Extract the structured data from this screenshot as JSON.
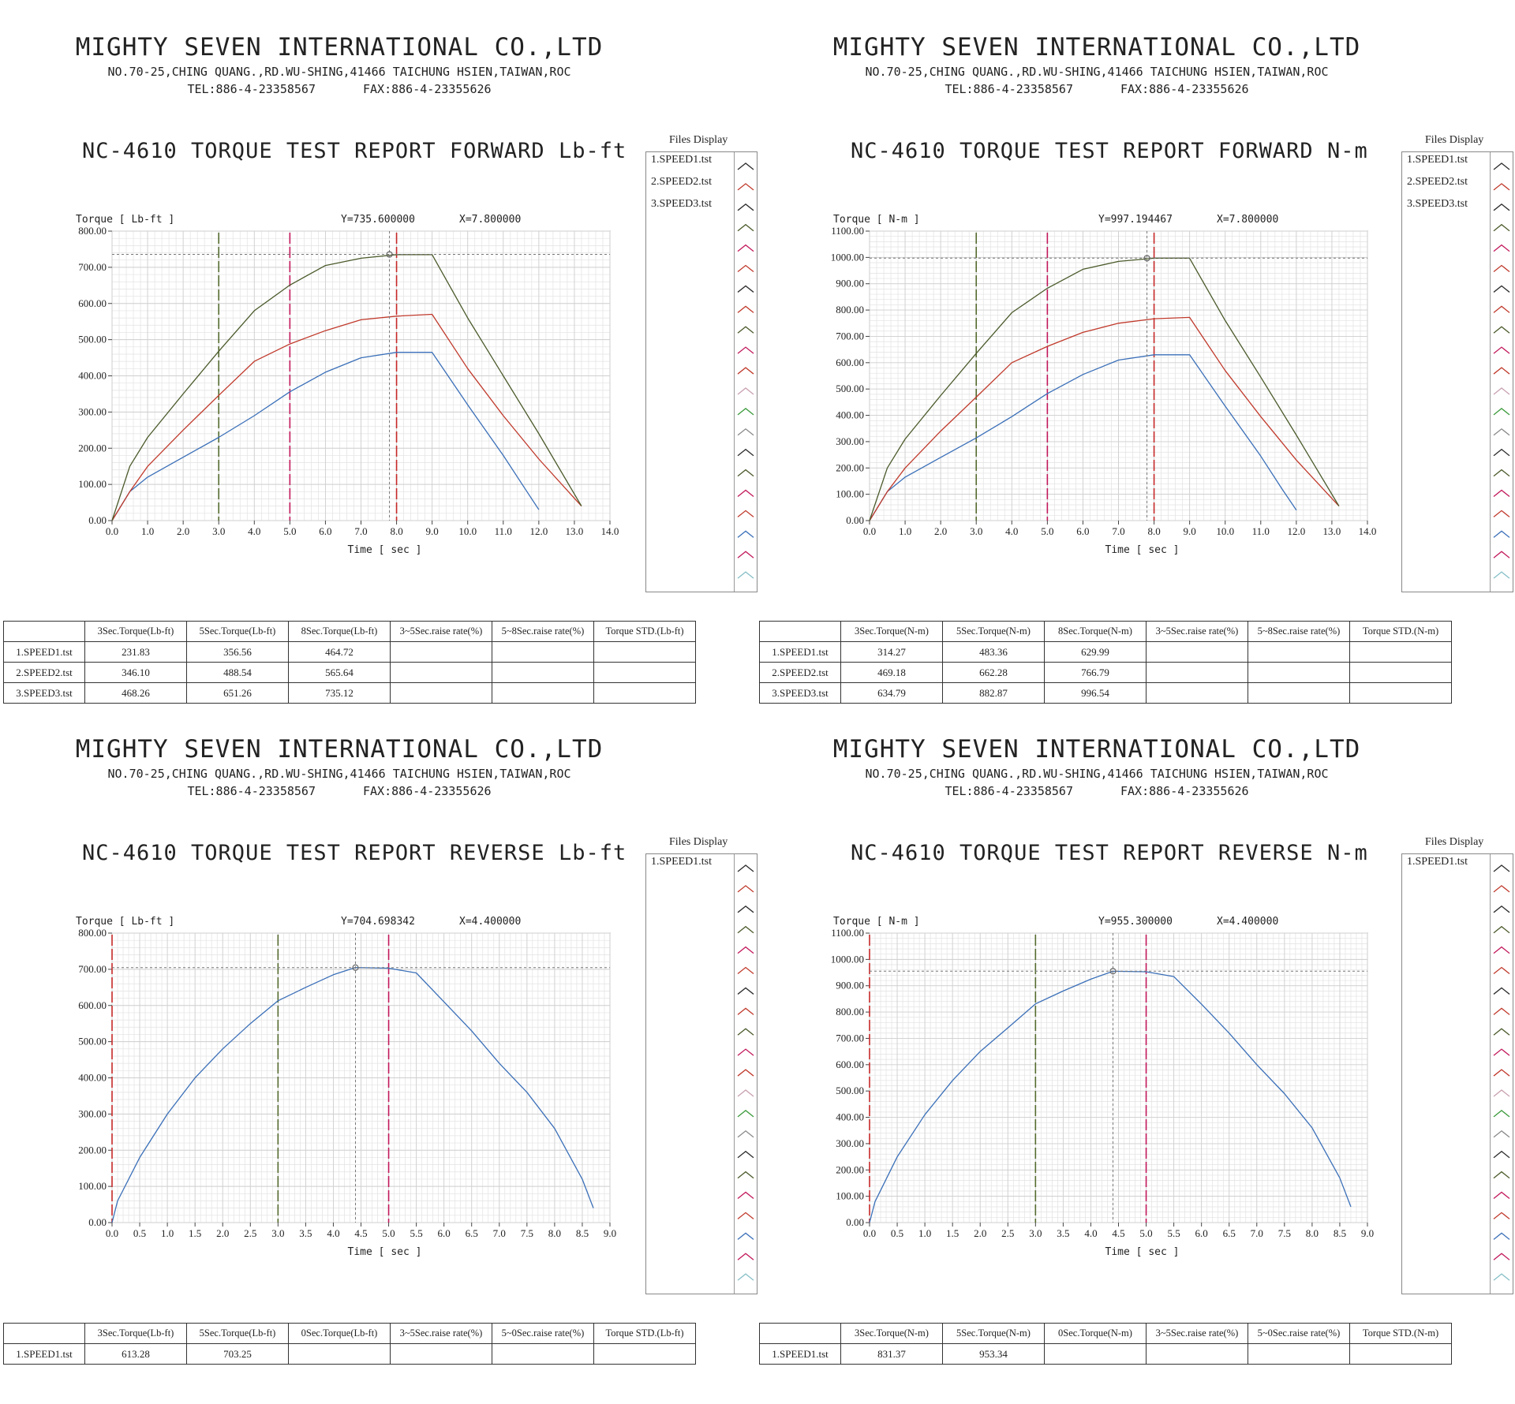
{
  "company": {
    "name": "MIGHTY SEVEN INTERNATIONAL CO.,LTD",
    "address": "NO.70-25,CHING QUANG.,RD.WU-SHING,41466 TAICHUNG HSIEN,TAIWAN,ROC",
    "tel": "TEL:886-4-23358567",
    "fax": "FAX:886-4-23355626"
  },
  "files_display_label": "Files Display",
  "reports": [
    {
      "title": "NC-4610 TORQUE TEST REPORT FORWARD Lb-ft",
      "files": [
        "1.SPEED1.tst",
        "2.SPEED2.tst",
        "3.SPEED3.tst"
      ],
      "table": {
        "headers": [
          "",
          "3Sec.Torque(Lb-ft)",
          "5Sec.Torque(Lb-ft)",
          "8Sec.Torque(Lb-ft)",
          "3~5Sec.raise rate(%)",
          "5~8Sec.raise rate(%)",
          "Torque STD.(Lb-ft)"
        ],
        "rows": [
          [
            "1.SPEED1.tst",
            "231.83",
            "356.56",
            "464.72",
            "",
            "",
            ""
          ],
          [
            "2.SPEED2.tst",
            "346.10",
            "488.54",
            "565.64",
            "",
            "",
            ""
          ],
          [
            "3.SPEED3.tst",
            "468.26",
            "651.26",
            "735.12",
            "",
            "",
            ""
          ]
        ]
      }
    },
    {
      "title": "NC-4610 TORQUE TEST REPORT FORWARD N-m",
      "files": [
        "1.SPEED1.tst",
        "2.SPEED2.tst",
        "3.SPEED3.tst"
      ],
      "table": {
        "headers": [
          "",
          "3Sec.Torque(N-m)",
          "5Sec.Torque(N-m)",
          "8Sec.Torque(N-m)",
          "3~5Sec.raise rate(%)",
          "5~8Sec.raise rate(%)",
          "Torque STD.(N-m)"
        ],
        "rows": [
          [
            "1.SPEED1.tst",
            "314.27",
            "483.36",
            "629.99",
            "",
            "",
            ""
          ],
          [
            "2.SPEED2.tst",
            "469.18",
            "662.28",
            "766.79",
            "",
            "",
            ""
          ],
          [
            "3.SPEED3.tst",
            "634.79",
            "882.87",
            "996.54",
            "",
            "",
            ""
          ]
        ]
      }
    },
    {
      "title": "NC-4610 TORQUE TEST REPORT REVERSE Lb-ft",
      "files": [
        "1.SPEED1.tst"
      ],
      "table": {
        "headers": [
          "",
          "3Sec.Torque(Lb-ft)",
          "5Sec.Torque(Lb-ft)",
          "0Sec.Torque(Lb-ft)",
          "3~5Sec.raise rate(%)",
          "5~0Sec.raise rate(%)",
          "Torque STD.(Lb-ft)"
        ],
        "rows": [
          [
            "1.SPEED1.tst",
            "613.28",
            "703.25",
            "",
            "",
            "",
            ""
          ]
        ]
      }
    },
    {
      "title": "NC-4610 TORQUE TEST REPORT REVERSE N-m",
      "files": [
        "1.SPEED1.tst"
      ],
      "table": {
        "headers": [
          "",
          "3Sec.Torque(N-m)",
          "5Sec.Torque(N-m)",
          "0Sec.Torque(N-m)",
          "3~5Sec.raise rate(%)",
          "5~0Sec.raise rate(%)",
          "Torque STD.(N-m)"
        ],
        "rows": [
          [
            "1.SPEED1.tst",
            "831.37",
            "953.34",
            "",
            "",
            "",
            ""
          ]
        ]
      }
    }
  ],
  "chart_data": [
    {
      "type": "line",
      "ylabel": "Torque [ Lb-ft ]",
      "xlabel": "Time [ sec ]",
      "cursor_y_text": "Y=735.600000",
      "cursor_x_text": "X=7.800000",
      "cursor": {
        "x": 7.8,
        "y": 735.6
      },
      "xlim": [
        0,
        14
      ],
      "ylim": [
        0,
        800
      ],
      "xticks": [
        0,
        1,
        2,
        3,
        4,
        5,
        6,
        7,
        8,
        9,
        10,
        11,
        12,
        13,
        14
      ],
      "xtick_labels": [
        "0.0",
        "1.0",
        "2.0",
        "3.0",
        "4.0",
        "5.0",
        "6.0",
        "7.0",
        "8.0",
        "9.0",
        "10.0",
        "11.0",
        "12.0",
        "13.0",
        "14.0"
      ],
      "yticks": [
        0,
        100,
        200,
        300,
        400,
        500,
        600,
        700,
        800
      ],
      "ytick_labels": [
        "0.00",
        "100.00",
        "200.00",
        "300.00",
        "400.00",
        "500.00",
        "600.00",
        "700.00",
        "800.00"
      ],
      "grid": true,
      "markers": [
        {
          "x": 3,
          "color": "#556b2f"
        },
        {
          "x": 5,
          "color": "#c2185b"
        },
        {
          "x": 8,
          "color": "#c62828"
        }
      ],
      "series": [
        {
          "color": "#3a6fb8",
          "x": [
            0,
            0.5,
            1,
            2,
            3,
            4,
            5,
            6,
            7,
            8,
            9,
            10,
            11,
            11.6,
            12
          ],
          "y": [
            0,
            80,
            120,
            175,
            230,
            290,
            356,
            410,
            450,
            465,
            465,
            320,
            180,
            90,
            30
          ]
        },
        {
          "color": "#c0392b",
          "x": [
            0,
            0.5,
            1,
            2,
            3,
            4,
            5,
            6,
            7,
            8,
            9,
            10,
            11,
            12,
            13.2
          ],
          "y": [
            0,
            80,
            150,
            250,
            346,
            440,
            488,
            525,
            555,
            565,
            570,
            420,
            290,
            170,
            40
          ]
        },
        {
          "color": "#4a5a2a",
          "x": [
            0,
            0.5,
            1,
            2,
            3,
            4,
            5,
            6,
            7,
            8,
            9,
            10,
            11,
            12,
            13.2
          ],
          "y": [
            0,
            150,
            230,
            350,
            468,
            580,
            651,
            705,
            725,
            735,
            735,
            560,
            400,
            240,
            40
          ]
        }
      ]
    },
    {
      "type": "line",
      "ylabel": "Torque [ N-m  ]",
      "xlabel": "Time [ sec ]",
      "cursor_y_text": "Y=997.194467",
      "cursor_x_text": "X=7.800000",
      "cursor": {
        "x": 7.8,
        "y": 997.19
      },
      "xlim": [
        0,
        14
      ],
      "ylim": [
        0,
        1100
      ],
      "xticks": [
        0,
        1,
        2,
        3,
        4,
        5,
        6,
        7,
        8,
        9,
        10,
        11,
        12,
        13,
        14
      ],
      "xtick_labels": [
        "0.0",
        "1.0",
        "2.0",
        "3.0",
        "4.0",
        "5.0",
        "6.0",
        "7.0",
        "8.0",
        "9.0",
        "10.0",
        "11.0",
        "12.0",
        "13.0",
        "14.0"
      ],
      "yticks": [
        0,
        100,
        200,
        300,
        400,
        500,
        600,
        700,
        800,
        900,
        1000,
        1100
      ],
      "ytick_labels": [
        "0.00",
        "100.00",
        "200.00",
        "300.00",
        "400.00",
        "500.00",
        "600.00",
        "700.00",
        "800.00",
        "900.00",
        "1000.00",
        "1100.00"
      ],
      "grid": true,
      "markers": [
        {
          "x": 3,
          "color": "#556b2f"
        },
        {
          "x": 5,
          "color": "#c2185b"
        },
        {
          "x": 8,
          "color": "#c62828"
        }
      ],
      "series": [
        {
          "color": "#3a6fb8",
          "x": [
            0,
            0.5,
            1,
            2,
            3,
            4,
            5,
            6,
            7,
            8,
            9,
            10,
            11,
            11.6,
            12
          ],
          "y": [
            0,
            110,
            165,
            240,
            314,
            395,
            483,
            555,
            610,
            630,
            630,
            435,
            245,
            120,
            40
          ]
        },
        {
          "color": "#c0392b",
          "x": [
            0,
            0.5,
            1,
            2,
            3,
            4,
            5,
            6,
            7,
            8,
            9,
            10,
            11,
            12,
            13.2
          ],
          "y": [
            0,
            110,
            200,
            340,
            469,
            600,
            662,
            715,
            750,
            767,
            772,
            570,
            395,
            230,
            55
          ]
        },
        {
          "color": "#4a5a2a",
          "x": [
            0,
            0.5,
            1,
            2,
            3,
            4,
            5,
            6,
            7,
            8,
            9,
            10,
            11,
            12,
            13.2
          ],
          "y": [
            0,
            200,
            310,
            475,
            635,
            790,
            883,
            955,
            985,
            997,
            997,
            760,
            545,
            325,
            55
          ]
        }
      ]
    },
    {
      "type": "line",
      "ylabel": "Torque [ Lb-ft ]",
      "xlabel": "Time [ sec ]",
      "cursor_y_text": "Y=704.698342",
      "cursor_x_text": "X=4.400000",
      "cursor": {
        "x": 4.4,
        "y": 704.7
      },
      "xlim": [
        0,
        9
      ],
      "ylim": [
        0,
        800
      ],
      "xticks": [
        0,
        0.5,
        1,
        1.5,
        2,
        2.5,
        3,
        3.5,
        4,
        4.5,
        5,
        5.5,
        6,
        6.5,
        7,
        7.5,
        8,
        8.5,
        9
      ],
      "xtick_labels": [
        "0.0",
        "0.5",
        "1.0",
        "1.5",
        "2.0",
        "2.5",
        "3.0",
        "3.5",
        "4.0",
        "4.5",
        "5.0",
        "5.5",
        "6.0",
        "6.5",
        "7.0",
        "7.5",
        "8.0",
        "8.5",
        "9.0"
      ],
      "yticks": [
        0,
        100,
        200,
        300,
        400,
        500,
        600,
        700,
        800
      ],
      "ytick_labels": [
        "0.00",
        "100.00",
        "200.00",
        "300.00",
        "400.00",
        "500.00",
        "600.00",
        "700.00",
        "800.00"
      ],
      "grid": true,
      "markers": [
        {
          "x": 0,
          "color": "#c62828"
        },
        {
          "x": 3,
          "color": "#556b2f"
        },
        {
          "x": 5,
          "color": "#c2185b"
        }
      ],
      "series": [
        {
          "color": "#3a6fb8",
          "x": [
            0,
            0.1,
            0.5,
            1,
            1.5,
            2,
            2.5,
            3,
            3.5,
            4,
            4.4,
            5,
            5.5,
            6,
            6.5,
            7,
            7.5,
            8,
            8.5,
            8.7
          ],
          "y": [
            0,
            60,
            180,
            300,
            400,
            480,
            550,
            613,
            650,
            685,
            705,
            703,
            690,
            610,
            530,
            440,
            360,
            260,
            120,
            40
          ]
        }
      ]
    },
    {
      "type": "line",
      "ylabel": "Torque [ N-m  ]",
      "xlabel": "Time [ sec ]",
      "cursor_y_text": "Y=955.300000",
      "cursor_x_text": "X=4.400000",
      "cursor": {
        "x": 4.4,
        "y": 955.3
      },
      "xlim": [
        0,
        9
      ],
      "ylim": [
        0,
        1100
      ],
      "xticks": [
        0,
        0.5,
        1,
        1.5,
        2,
        2.5,
        3,
        3.5,
        4,
        4.5,
        5,
        5.5,
        6,
        6.5,
        7,
        7.5,
        8,
        8.5,
        9
      ],
      "xtick_labels": [
        "0.0",
        "0.5",
        "1.0",
        "1.5",
        "2.0",
        "2.5",
        "3.0",
        "3.5",
        "4.0",
        "4.5",
        "5.0",
        "5.5",
        "6.0",
        "6.5",
        "7.0",
        "7.5",
        "8.0",
        "8.5",
        "9.0"
      ],
      "yticks": [
        0,
        100,
        200,
        300,
        400,
        500,
        600,
        700,
        800,
        900,
        1000,
        1100
      ],
      "ytick_labels": [
        "0.00",
        "100.00",
        "200.00",
        "300.00",
        "400.00",
        "500.00",
        "600.00",
        "700.00",
        "800.00",
        "900.00",
        "1000.00",
        "1100.00"
      ],
      "grid": true,
      "markers": [
        {
          "x": 0,
          "color": "#c62828"
        },
        {
          "x": 3,
          "color": "#556b2f"
        },
        {
          "x": 5,
          "color": "#c2185b"
        }
      ],
      "series": [
        {
          "color": "#3a6fb8",
          "x": [
            0,
            0.1,
            0.5,
            1,
            1.5,
            2,
            2.5,
            3,
            3.5,
            4,
            4.4,
            5,
            5.5,
            6,
            6.5,
            7,
            7.5,
            8,
            8.5,
            8.7
          ],
          "y": [
            0,
            80,
            250,
            410,
            540,
            650,
            740,
            831,
            880,
            925,
            955,
            953,
            935,
            830,
            720,
            600,
            490,
            360,
            170,
            60
          ]
        }
      ]
    }
  ],
  "legend_strip_colors": [
    "#2c2c2c",
    "#c0392b",
    "#2c2c2c",
    "#4a5a2a",
    "#c2185b",
    "#c0392b",
    "#2c2c2c",
    "#c0392b",
    "#4a5a2a",
    "#c2185b",
    "#c0392b",
    "#c8a0b0",
    "#3a9a3a",
    "#888888",
    "#2c2c2c",
    "#4a5a2a",
    "#c2185b",
    "#c0392b",
    "#3a6fb8",
    "#c2185b",
    "#88c0c8"
  ]
}
